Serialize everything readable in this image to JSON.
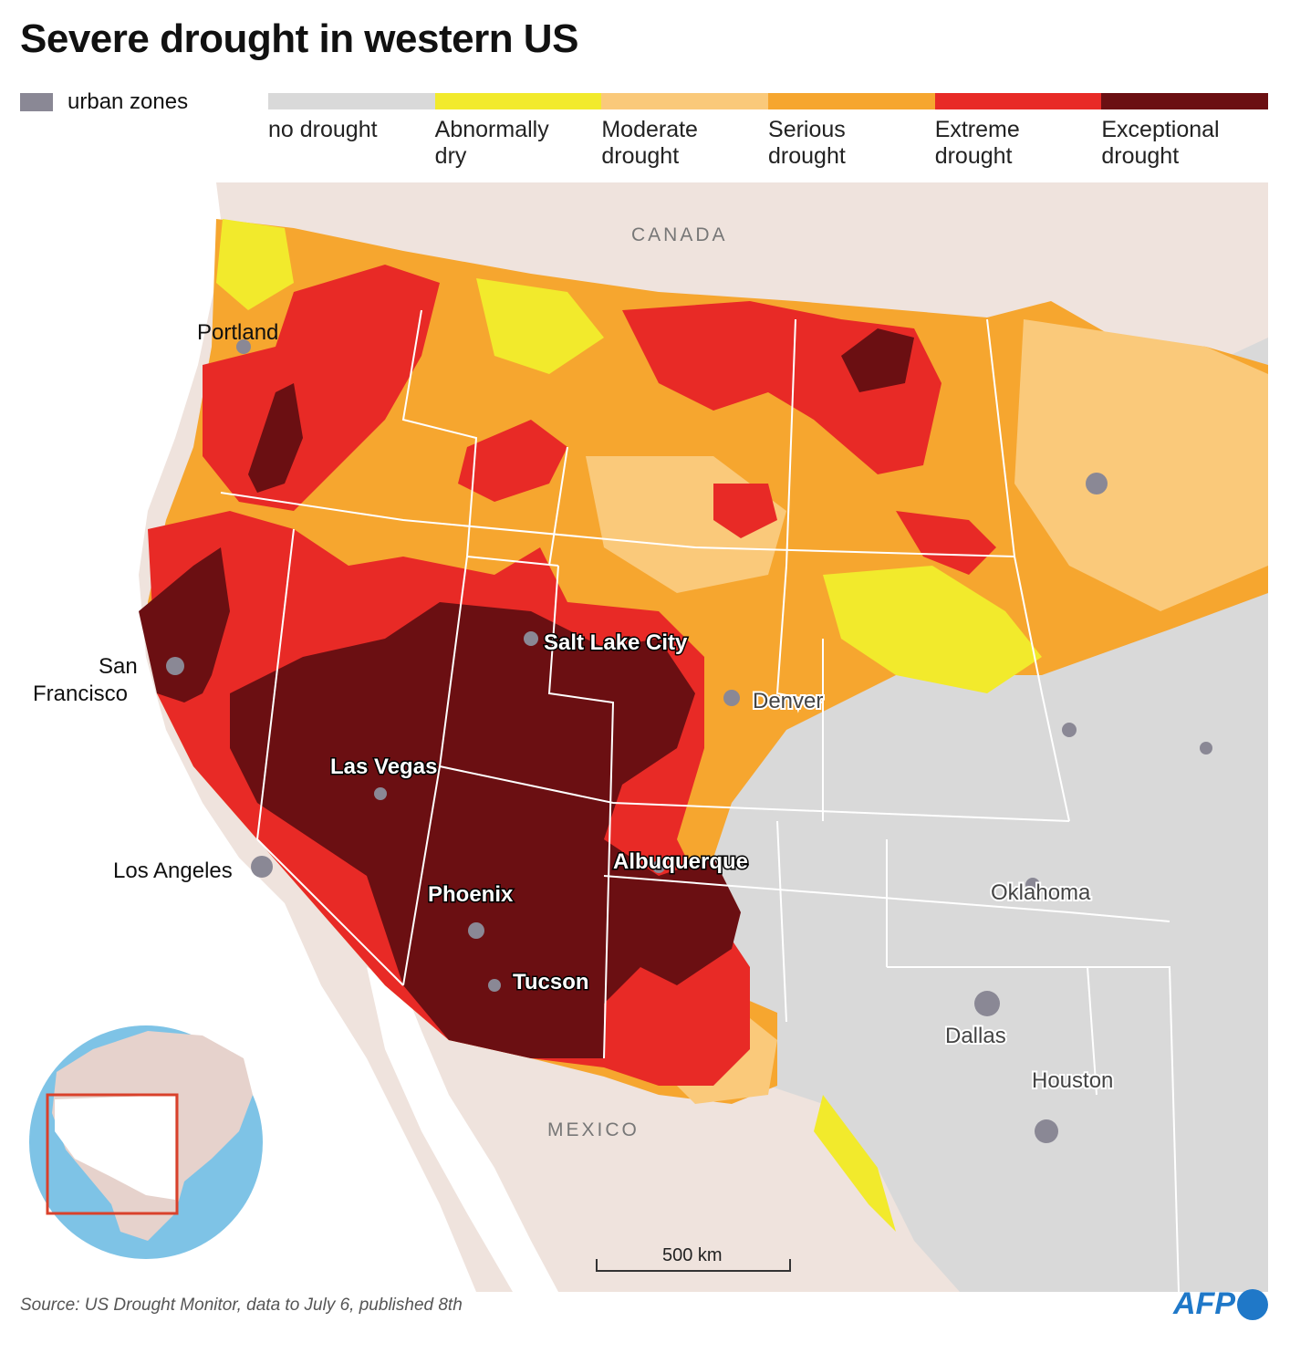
{
  "title": "Severe drought in western US",
  "urban_legend": {
    "label": "urban zones",
    "color": "#8a8895"
  },
  "legend": [
    {
      "label": "no drought",
      "color": "#d9d9d9"
    },
    {
      "label": "Abnormally\ndry",
      "color": "#f2ea2c"
    },
    {
      "label": "Moderate\ndrought",
      "color": "#fac97a"
    },
    {
      "label": "Serious\ndrought",
      "color": "#f6a62f"
    },
    {
      "label": "Extreme\ndrought",
      "color": "#e82a26"
    },
    {
      "label": "Exceptional\ndrought",
      "color": "#6b0f12"
    }
  ],
  "countries": {
    "canada": "CANADA",
    "mexico": "MEXICO"
  },
  "cities": {
    "portland": "Portland",
    "san_francisco_1": "San",
    "san_francisco_2": "Francisco",
    "los_angeles": "Los Angeles",
    "las_vegas": "Las Vegas",
    "salt_lake_city": "Salt Lake City",
    "phoenix": "Phoenix",
    "tucson": "Tucson",
    "albuquerque": "Albuquerque",
    "denver": "Denver",
    "oklahoma": "Oklahoma",
    "dallas": "Dallas",
    "houston": "Houston"
  },
  "scale": {
    "label": "500 km"
  },
  "source": "Source: US Drought Monitor, data to July 6, published 8th",
  "brand": "AFP",
  "colors": {
    "background_land": "#efe3dd",
    "no_data_land": "#ece2dc",
    "ocean": "#ffffff",
    "inset_ocean": "#7ec3e6",
    "inset_land": "#e6d2cc",
    "inset_frame": "#d9412b",
    "state_border": "#ffffff",
    "brand_blue": "#1f78c8"
  }
}
